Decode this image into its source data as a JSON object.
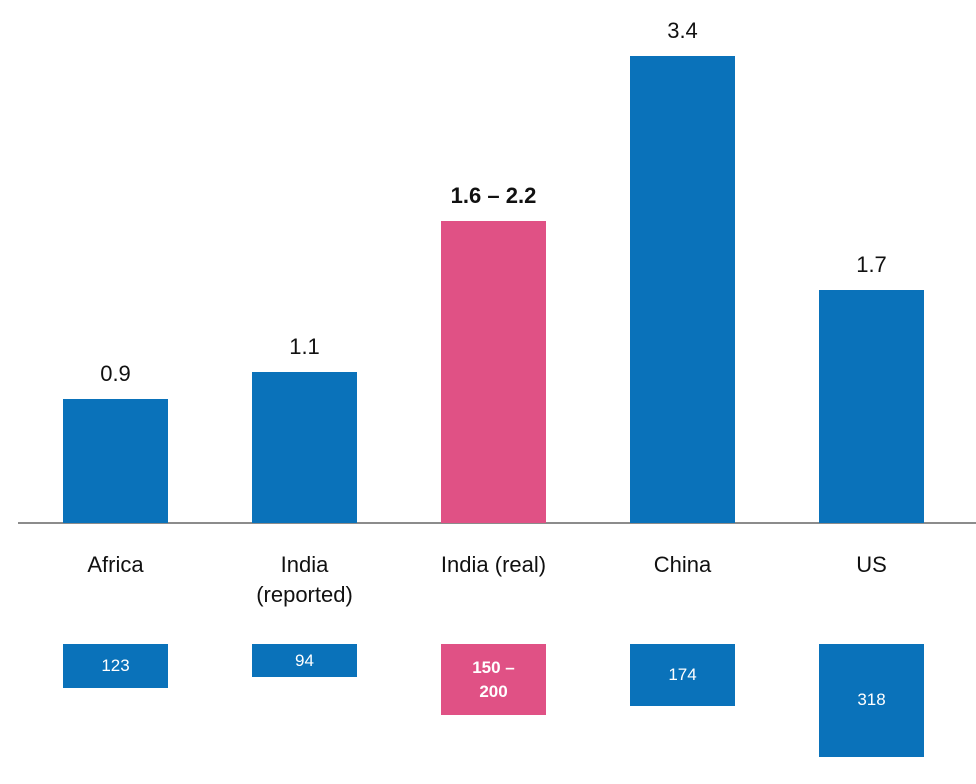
{
  "chart_data": {
    "type": "bar",
    "categories": [
      "Africa",
      "India (reported)",
      "India (real)",
      "China",
      "US"
    ],
    "values": [
      0.9,
      1.1,
      2.2,
      3.4,
      1.7
    ],
    "value_labels": [
      "0.9",
      "1.1",
      "1.6 – 2.2",
      "3.4",
      "1.7"
    ],
    "colors": [
      "#0a72ba",
      "#0a72ba",
      "#e05185",
      "#0a72ba",
      "#0a72ba"
    ],
    "emphasis": [
      false,
      false,
      true,
      false,
      false
    ],
    "ylim": [
      0,
      3.4
    ],
    "box_values": [
      123,
      94,
      200,
      174,
      318
    ],
    "box_labels": [
      "123",
      "94",
      "150 – 200",
      "174",
      "318"
    ]
  }
}
